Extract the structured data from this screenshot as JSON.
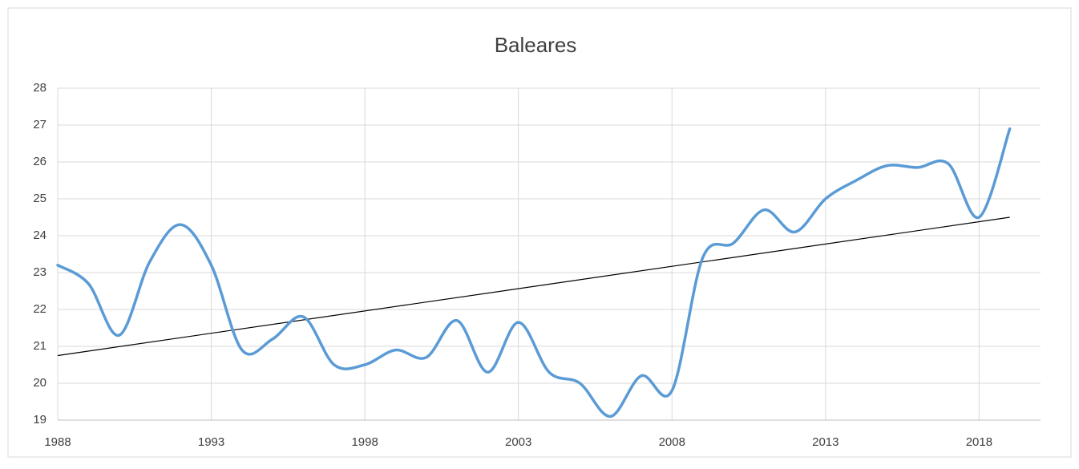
{
  "chart_data": {
    "type": "line",
    "title": "Baleares",
    "x": [
      1988,
      1989,
      1990,
      1991,
      1992,
      1993,
      1994,
      1995,
      1996,
      1997,
      1998,
      1999,
      2000,
      2001,
      2002,
      2003,
      2004,
      2005,
      2006,
      2007,
      2008,
      2009,
      2010,
      2011,
      2012,
      2013,
      2014,
      2015,
      2016,
      2017,
      2018,
      2019
    ],
    "series": [
      {
        "color": "#5b9bd5",
        "values": [
          23.2,
          22.7,
          21.3,
          23.3,
          24.3,
          23.2,
          20.9,
          21.2,
          21.8,
          20.5,
          20.5,
          20.9,
          20.7,
          21.7,
          20.3,
          21.65,
          20.3,
          20.0,
          19.1,
          20.2,
          19.8,
          23.4,
          23.8,
          24.7,
          24.1,
          25.0,
          25.5,
          25.9,
          25.85,
          25.95,
          24.5,
          26.9
        ]
      }
    ],
    "trendline": {
      "x": [
        1988,
        2019
      ],
      "values": [
        20.75,
        24.5
      ],
      "color": "#000000"
    },
    "xlim": [
      1988,
      2020
    ],
    "xticks": [
      1988,
      1993,
      1998,
      2003,
      2008,
      2013,
      2018
    ],
    "ylim": [
      19,
      28
    ],
    "yticks": [
      19,
      20,
      21,
      22,
      23,
      24,
      25,
      26,
      27,
      28
    ],
    "grid": true
  }
}
